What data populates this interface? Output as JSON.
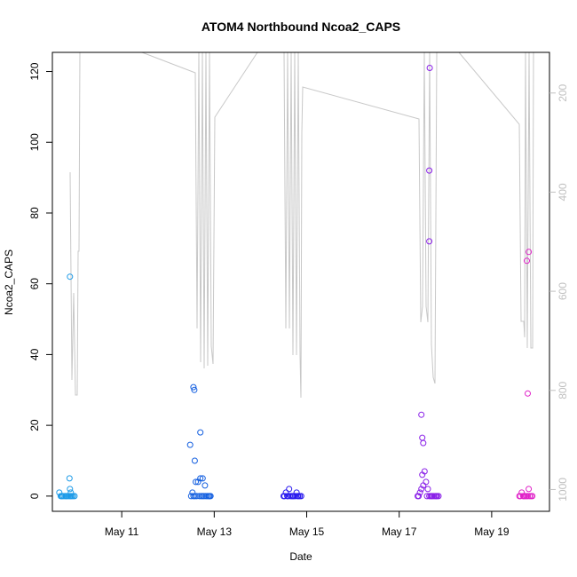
{
  "chart_data": {
    "type": "scatter",
    "title": "ATOM4 Northbound Ncoa2_CAPS",
    "xlabel": "Date",
    "ylabel": "Ncoa2_CAPS",
    "x_ticks": [
      "May 11",
      "May 13",
      "May 15",
      "May 17",
      "May 19"
    ],
    "x_tick_values": [
      11,
      13,
      15,
      17,
      19
    ],
    "xlim": [
      9.5,
      20.25
    ],
    "ylim": [
      -4.3,
      125.4
    ],
    "y_ticks": [
      0,
      20,
      40,
      60,
      80,
      100,
      120
    ],
    "y2_ticks": [
      200,
      400,
      600,
      800,
      1000
    ],
    "y2_lim": [
      1044,
      118
    ],
    "y2_reversed": true,
    "y2_color": "#c0c0c0",
    "grid": false,
    "legend": "none",
    "series": [
      {
        "color": "#1E9BE8",
        "points": [
          [
            9.65,
            1
          ],
          [
            9.68,
            0
          ],
          [
            9.7,
            0
          ],
          [
            9.72,
            0
          ],
          [
            9.75,
            0
          ],
          [
            9.78,
            0
          ],
          [
            9.8,
            0
          ],
          [
            9.82,
            0
          ],
          [
            9.85,
            0
          ],
          [
            9.88,
            0
          ],
          [
            9.9,
            0
          ],
          [
            9.92,
            0
          ],
          [
            9.95,
            0
          ],
          [
            9.98,
            0
          ],
          [
            9.88,
            2
          ],
          [
            9.9,
            1
          ],
          [
            9.87,
            5
          ],
          [
            9.88,
            62
          ]
        ]
      },
      {
        "color": "#1560E0",
        "points": [
          [
            12.5,
            0
          ],
          [
            12.53,
            1
          ],
          [
            12.55,
            0
          ],
          [
            12.58,
            0
          ],
          [
            12.6,
            4
          ],
          [
            12.62,
            0
          ],
          [
            12.65,
            4
          ],
          [
            12.68,
            0
          ],
          [
            12.7,
            5
          ],
          [
            12.72,
            0
          ],
          [
            12.75,
            0
          ],
          [
            12.78,
            0
          ],
          [
            12.8,
            3
          ],
          [
            12.82,
            0
          ],
          [
            12.85,
            0
          ],
          [
            12.88,
            0
          ],
          [
            12.9,
            0
          ],
          [
            12.92,
            0
          ],
          [
            12.48,
            14.5
          ],
          [
            12.58,
            10
          ],
          [
            12.7,
            18
          ],
          [
            12.75,
            5
          ],
          [
            12.55,
            30.8
          ],
          [
            12.57,
            30
          ]
        ]
      },
      {
        "color": "#2A1AEE",
        "points": [
          [
            14.5,
            0
          ],
          [
            14.52,
            0
          ],
          [
            14.55,
            1
          ],
          [
            14.58,
            0
          ],
          [
            14.6,
            0
          ],
          [
            14.62,
            2
          ],
          [
            14.65,
            0
          ],
          [
            14.68,
            0
          ],
          [
            14.7,
            0
          ],
          [
            14.72,
            0
          ],
          [
            14.75,
            0
          ],
          [
            14.78,
            1
          ],
          [
            14.8,
            0
          ],
          [
            14.82,
            0
          ],
          [
            14.85,
            0
          ],
          [
            14.88,
            0
          ]
        ]
      },
      {
        "color": "#8A20E8",
        "points": [
          [
            17.4,
            0
          ],
          [
            17.42,
            0
          ],
          [
            17.45,
            1
          ],
          [
            17.48,
            2
          ],
          [
            17.5,
            6
          ],
          [
            17.52,
            3
          ],
          [
            17.55,
            7
          ],
          [
            17.58,
            4
          ],
          [
            17.6,
            0
          ],
          [
            17.62,
            2
          ],
          [
            17.65,
            0
          ],
          [
            17.68,
            0
          ],
          [
            17.7,
            0
          ],
          [
            17.72,
            0
          ],
          [
            17.75,
            0
          ],
          [
            17.78,
            0
          ],
          [
            17.8,
            0
          ],
          [
            17.82,
            0
          ],
          [
            17.85,
            0
          ],
          [
            17.48,
            23
          ],
          [
            17.5,
            16.5
          ],
          [
            17.52,
            15
          ],
          [
            17.65,
            72
          ],
          [
            17.65,
            92
          ],
          [
            17.66,
            121
          ]
        ]
      },
      {
        "color": "#E020C8",
        "points": [
          [
            19.6,
            0
          ],
          [
            19.62,
            0
          ],
          [
            19.65,
            1
          ],
          [
            19.68,
            0
          ],
          [
            19.7,
            0
          ],
          [
            19.72,
            0
          ],
          [
            19.75,
            0
          ],
          [
            19.78,
            0
          ],
          [
            19.8,
            2
          ],
          [
            19.82,
            0
          ],
          [
            19.85,
            0
          ],
          [
            19.88,
            0
          ],
          [
            19.78,
            29
          ],
          [
            19.76,
            66.5
          ],
          [
            19.8,
            69
          ]
        ]
      }
    ]
  }
}
